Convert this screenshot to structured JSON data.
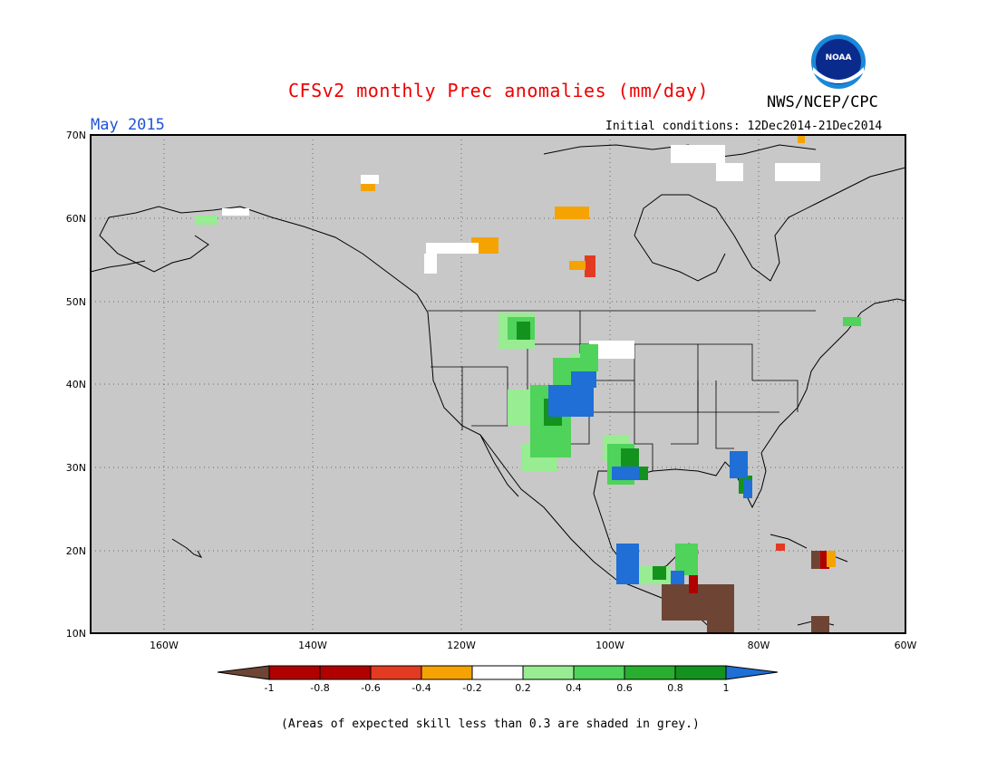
{
  "header": {
    "title": "CFSv2 monthly Prec anomalies (mm/day)",
    "agency": "NWS/NCEP/CPC",
    "logo_text": "NOAA",
    "month": "May 2015",
    "initial_conditions": "Initial conditions: 12Dec2014-21Dec2014"
  },
  "map": {
    "lat_labels": [
      "10N",
      "20N",
      "30N",
      "40N",
      "50N",
      "60N",
      "70N"
    ],
    "lon_labels": [
      "160W",
      "140W",
      "120W",
      "100W",
      "80W",
      "60W"
    ],
    "skill_mask_color": "#c8c8c8",
    "grid_line_style": "dotted"
  },
  "colorbar": {
    "tick_labels": [
      "-1",
      "-0.8",
      "-0.6",
      "-0.4",
      "-0.2",
      "0.2",
      "0.4",
      "0.6",
      "0.8",
      "1"
    ],
    "colors": [
      "#6e4535",
      "#b00000",
      "#e33a22",
      "#f08a1a",
      "#f5a300",
      "#ffffff",
      "#98ec92",
      "#4fd35a",
      "#2aae30",
      "#14921e",
      "#1f6fd6"
    ]
  },
  "footnote": "(Areas of expected skill less than 0.3 are shaded in grey.)"
}
